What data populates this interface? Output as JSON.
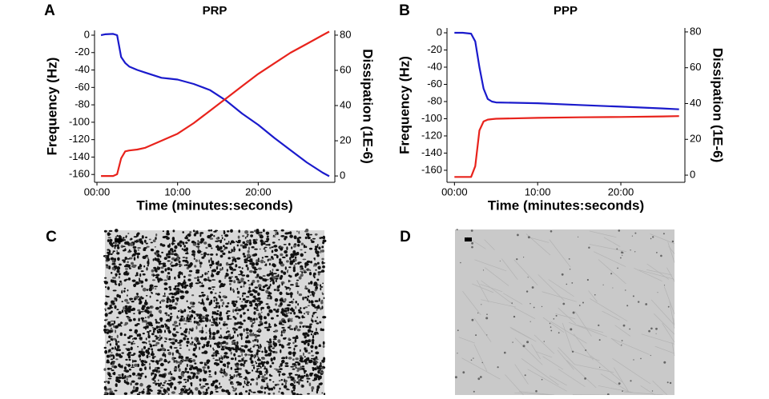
{
  "chart_data": [
    {
      "type": "line",
      "panel": "A",
      "title": "PRP",
      "x_label": "Time (minutes:seconds)",
      "y_label": "Frequency (Hz)",
      "y2_label": "Dissipation (1E-6)",
      "x": [
        0.5,
        1,
        2,
        2.5,
        3,
        3.5,
        4,
        5,
        6,
        7,
        8,
        9,
        10,
        12,
        14,
        16,
        18,
        20,
        22,
        24,
        26,
        28,
        28.8
      ],
      "series": [
        {
          "color": "#1a1acc",
          "values": [
            0,
            1,
            1.5,
            0,
            -25,
            -32,
            -36,
            -40,
            -43,
            -46,
            -49,
            -50,
            -51,
            -56,
            -63,
            -75,
            -90,
            -103,
            -118,
            -132,
            -146,
            -158,
            -162
          ]
        },
        {
          "color": "#e8231c",
          "axis": "y2",
          "values": [
            0,
            0,
            0,
            1,
            10,
            14,
            14.5,
            15,
            16,
            18,
            20,
            22,
            24,
            30,
            37,
            44,
            51,
            58,
            64,
            70,
            75,
            80,
            82
          ]
        }
      ],
      "xlim": [
        -0.3,
        29.5
      ],
      "xticks": [
        {
          "value": 0,
          "label": "00:00"
        },
        {
          "value": 10,
          "label": "10:00"
        },
        {
          "value": 20,
          "label": "20:00"
        }
      ],
      "ylim": [
        -169,
        5.5
      ],
      "yticks": [
        0,
        -20,
        -40,
        -60,
        -80,
        -100,
        -120,
        -140,
        -160
      ],
      "y2lim": [
        -3.6,
        82.7
      ],
      "y2ticks": [
        0,
        20,
        40,
        60,
        80
      ]
    },
    {
      "type": "line",
      "panel": "B",
      "title": "PPP",
      "x_label": "Time (minutes:seconds)",
      "y_label": "Frequency (Hz)",
      "y2_label": "Dissipation (1E-6)",
      "x": [
        0,
        1,
        2,
        2.5,
        3,
        3.5,
        4,
        4.5,
        5,
        10,
        15,
        20,
        25,
        27
      ],
      "series": [
        {
          "color": "#1a1acc",
          "values": [
            0,
            0,
            -1,
            -10,
            -40,
            -65,
            -77,
            -80,
            -81,
            -82,
            -84,
            -86,
            -88,
            -89
          ]
        },
        {
          "color": "#e8231c",
          "axis": "y2",
          "values": [
            -1,
            -1,
            -1,
            5,
            25,
            30,
            31,
            31.3,
            31.5,
            32,
            32.3,
            32.5,
            32.8,
            33
          ]
        }
      ],
      "xlim": [
        -0.9,
        27.7
      ],
      "xticks": [
        {
          "value": 0,
          "label": "00:00"
        },
        {
          "value": 10,
          "label": "10:00"
        },
        {
          "value": 20,
          "label": "20:00"
        }
      ],
      "ylim": [
        -174,
        5.6
      ],
      "yticks": [
        0,
        -20,
        -40,
        -60,
        -80,
        -100,
        -120,
        -140,
        -160
      ],
      "y2lim": [
        -4,
        82.2
      ],
      "y2ticks": [
        0,
        20,
        40,
        60,
        80
      ]
    }
  ],
  "images": [
    {
      "panel": "C"
    },
    {
      "panel": "D"
    }
  ]
}
